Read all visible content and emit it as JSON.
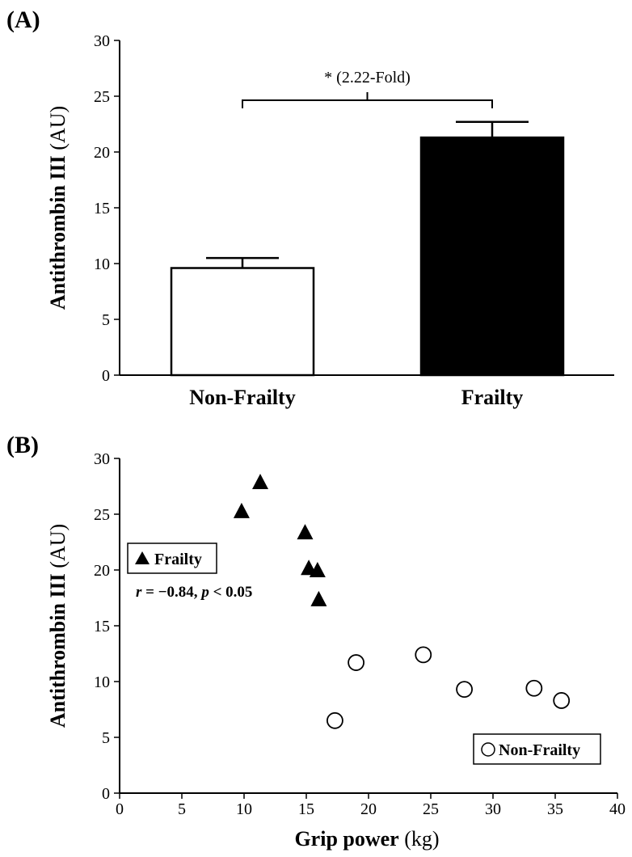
{
  "chart_data": [
    {
      "panel_label": "(A)",
      "type": "bar",
      "categories": [
        "Non-Frailty",
        "Frailty"
      ],
      "values": [
        9.6,
        21.3
      ],
      "errors": [
        0.9,
        1.4
      ],
      "bar_colors": [
        "#ffffff",
        "#000000"
      ],
      "ylabel_bold": "Antithrombin III",
      "ylabel_unit": "(AU)",
      "xlabel": "",
      "ylim": [
        0,
        30
      ],
      "yticks": [
        0,
        5,
        10,
        15,
        20,
        25,
        30
      ],
      "annotation": "* (2.22-Fold)",
      "grid": false
    },
    {
      "panel_label": "(B)",
      "type": "scatter",
      "series": [
        {
          "name": "Frailty",
          "marker": "filled-triangle",
          "points": [
            [
              9.8,
              25.3
            ],
            [
              11.3,
              27.9
            ],
            [
              14.9,
              23.4
            ],
            [
              15.2,
              20.2
            ],
            [
              15.9,
              20.0
            ],
            [
              16.0,
              17.4
            ]
          ]
        },
        {
          "name": "Non-Frailty",
          "marker": "open-circle",
          "points": [
            [
              17.3,
              6.5
            ],
            [
              19.0,
              11.7
            ],
            [
              24.4,
              12.4
            ],
            [
              27.7,
              9.3
            ],
            [
              33.3,
              9.4
            ],
            [
              35.5,
              8.3
            ]
          ]
        }
      ],
      "stat_text": {
        "r_symbol": "r",
        "r_value": " = −0.84, ",
        "p_symbol": "p",
        "p_value": " < 0.05"
      },
      "xlabel_bold": "Grip power",
      "xlabel_unit": "(kg)",
      "ylabel_bold": "Antithrombin III",
      "ylabel_unit": "(AU)",
      "xlim": [
        0,
        40
      ],
      "ylim": [
        0,
        30
      ],
      "xticks": [
        0,
        5,
        10,
        15,
        20,
        25,
        30,
        35,
        40
      ],
      "yticks": [
        0,
        5,
        10,
        15,
        20,
        25,
        30
      ],
      "legend_placement": [
        "middle-left",
        "bottom-right"
      ],
      "grid": false
    }
  ]
}
